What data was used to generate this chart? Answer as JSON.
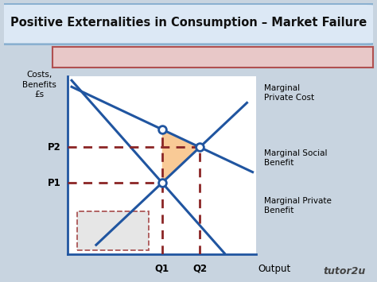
{
  "title": "Positive Externalities in Consumption – Market Failure",
  "bg_color": "#c8d4e0",
  "plot_bg_color": "#ffffff",
  "banner_color": "#e8c8c8",
  "banner_border": "#b05050",
  "title_box_fill": "#dce8f5",
  "title_box_border": "#8ab0d0",
  "title_color": "#111111",
  "line_color": "#2055a0",
  "line_width": 2.2,
  "dashed_color": "#8B2525",
  "dashed_lw": 2.0,
  "orange_fill": "#F5A040",
  "orange_alpha": 0.55,
  "box_fill": "#e0e0e0",
  "box_border": "#9a3030",
  "Q1": 5,
  "Q2": 7,
  "P1": 4,
  "P2": 6,
  "x_min": 0,
  "x_max": 10,
  "y_min": 0,
  "y_max": 10,
  "ylabel_lines": [
    "Costs,",
    "Benefits",
    "£s"
  ],
  "xlabel": "Output",
  "label_mpc": "Marginal\nPrivate Cost",
  "label_msb": "Marginal Social\nBenefit",
  "label_mpb": "Marginal Private\nBenefit",
  "watermark": "tutor2u"
}
